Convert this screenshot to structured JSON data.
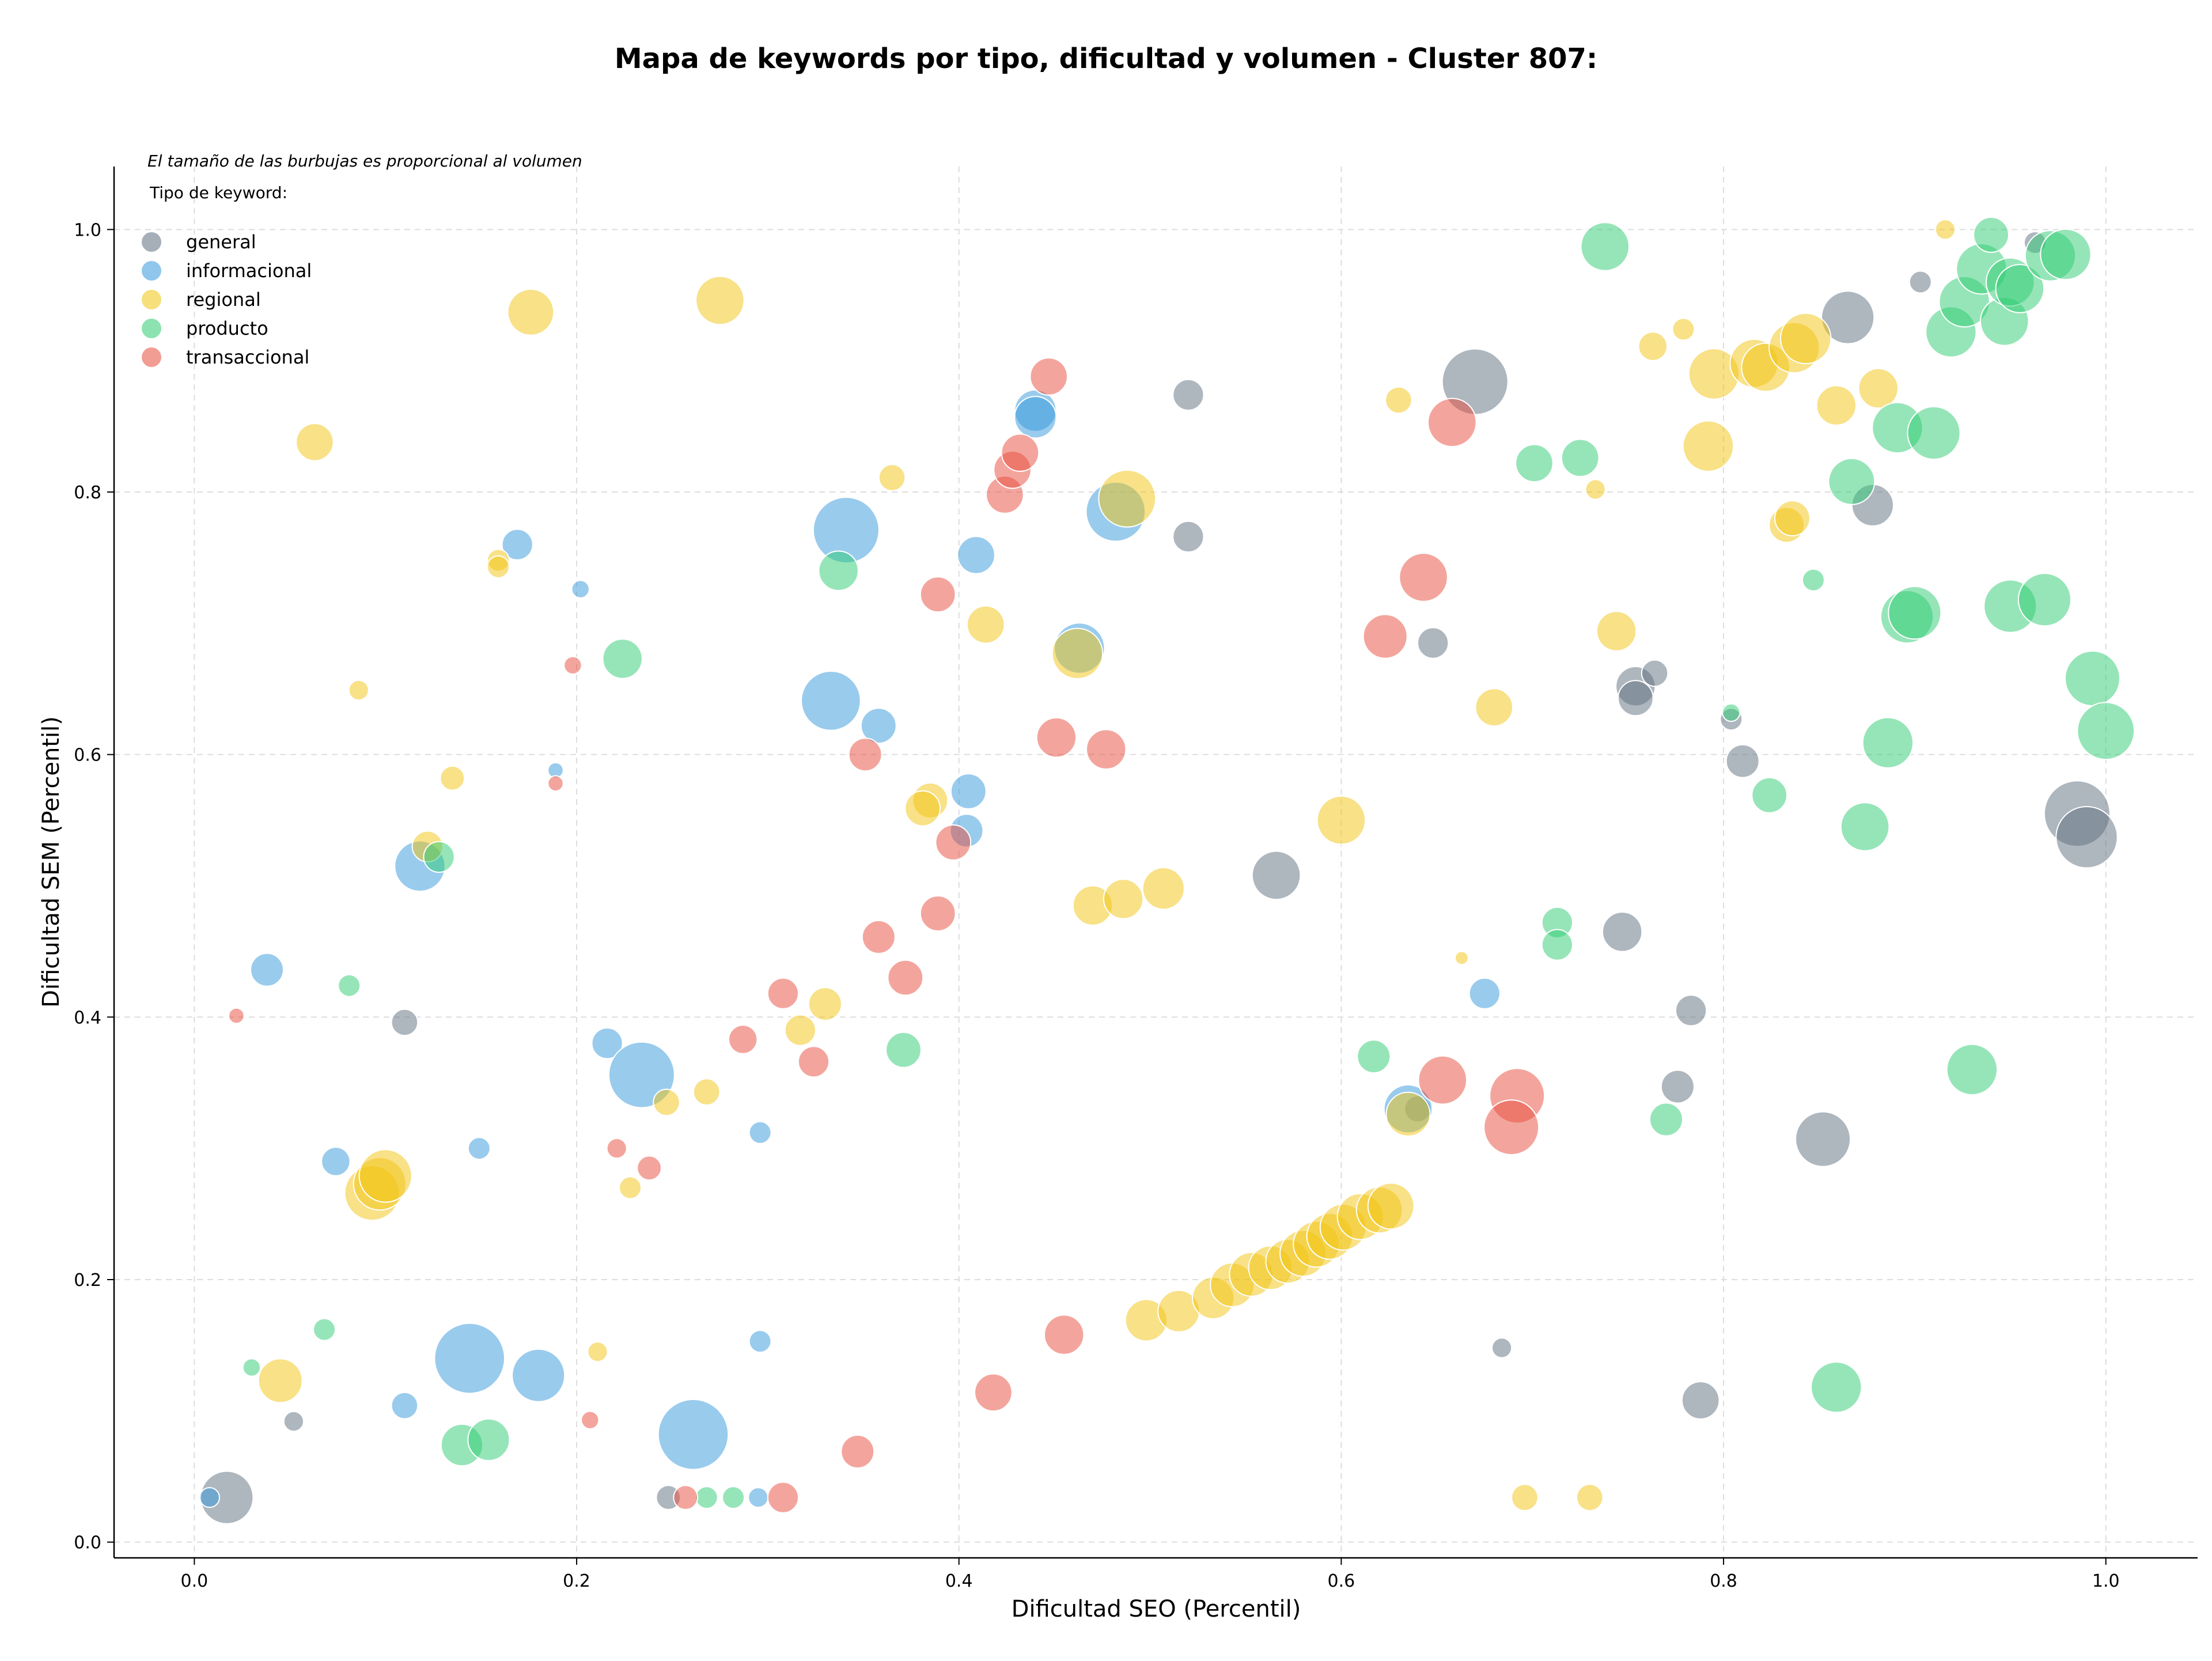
{
  "chart_data": {
    "type": "scatter",
    "title": "Mapa de keywords por tipo, dificultad y volumen - Cluster 807:",
    "subtitle": "El tamaño de las burbujas es proporcional al volumen",
    "xlabel": "Dificultad SEO (Percentil)",
    "ylabel": "Dificultad SEM (Percentil)",
    "xlim": [
      -0.042,
      1.048
    ],
    "ylim": [
      -0.012,
      1.048
    ],
    "xticks": [
      "0.0",
      "0.2",
      "0.4",
      "0.6",
      "0.8",
      "1.0"
    ],
    "xtick_values": [
      0.0,
      0.2,
      0.4,
      0.6,
      0.8,
      1.0
    ],
    "yticks": [
      "0.0",
      "0.2",
      "0.4",
      "0.6",
      "0.8",
      "1.0"
    ],
    "ytick_values": [
      0.0,
      0.2,
      0.4,
      0.6,
      0.8,
      1.0
    ],
    "grid": true,
    "legend_title": "Tipo de keyword:",
    "legend_position": "top-left",
    "series": [
      {
        "name": "general",
        "color": "#5d6d7e",
        "points": [
          [
            0.017,
            0.034,
            2.4
          ],
          [
            0.11,
            0.396,
            1.2
          ],
          [
            0.052,
            0.092,
            0.9
          ],
          [
            0.248,
            0.034,
            1.1
          ],
          [
            0.52,
            0.874,
            1.4
          ],
          [
            0.52,
            0.766,
            1.4
          ],
          [
            0.67,
            0.884,
            3.0
          ],
          [
            0.648,
            0.685,
            1.4
          ],
          [
            0.754,
            0.652,
            1.8
          ],
          [
            0.754,
            0.643,
            1.6
          ],
          [
            0.764,
            0.662,
            1.2
          ],
          [
            0.804,
            0.627,
            1.0
          ],
          [
            0.81,
            0.595,
            1.5
          ],
          [
            0.747,
            0.465,
            1.8
          ],
          [
            0.783,
            0.405,
            1.4
          ],
          [
            0.776,
            0.347,
            1.5
          ],
          [
            0.852,
            0.307,
            2.5
          ],
          [
            0.684,
            0.148,
            0.9
          ],
          [
            0.788,
            0.108,
            1.7
          ],
          [
            0.566,
            0.508,
            2.2
          ],
          [
            0.865,
            0.933,
            2.4
          ],
          [
            0.878,
            0.79,
            1.9
          ],
          [
            0.903,
            0.96,
            1.0
          ],
          [
            0.963,
            0.99,
            1.0
          ],
          [
            0.985,
            0.555,
            3.0
          ],
          [
            0.99,
            0.537,
            2.8
          ],
          [
            0.64,
            0.33,
            1.2
          ]
        ]
      },
      {
        "name": "informacional",
        "color": "#3498db",
        "points": [
          [
            0.008,
            0.034,
            0.9
          ],
          [
            0.038,
            0.436,
            1.5
          ],
          [
            0.074,
            0.29,
            1.3
          ],
          [
            0.11,
            0.104,
            1.2
          ],
          [
            0.118,
            0.515,
            2.3
          ],
          [
            0.149,
            0.3,
            1.0
          ],
          [
            0.144,
            0.14,
            3.2
          ],
          [
            0.18,
            0.127,
            2.4
          ],
          [
            0.169,
            0.76,
            1.4
          ],
          [
            0.189,
            0.588,
            0.7
          ],
          [
            0.202,
            0.726,
            0.8
          ],
          [
            0.216,
            0.38,
            1.4
          ],
          [
            0.234,
            0.356,
            3.0
          ],
          [
            0.261,
            0.082,
            3.2
          ],
          [
            0.296,
            0.312,
            1.0
          ],
          [
            0.296,
            0.153,
            1.0
          ],
          [
            0.295,
            0.034,
            0.9
          ],
          [
            0.341,
            0.771,
            3.0
          ],
          [
            0.333,
            0.641,
            2.7
          ],
          [
            0.358,
            0.622,
            1.6
          ],
          [
            0.405,
            0.572,
            1.6
          ],
          [
            0.404,
            0.542,
            1.5
          ],
          [
            0.409,
            0.752,
            1.7
          ],
          [
            0.44,
            0.862,
            1.9
          ],
          [
            0.44,
            0.857,
            1.9
          ],
          [
            0.463,
            0.681,
            2.3
          ],
          [
            0.482,
            0.785,
            2.7
          ],
          [
            0.675,
            0.418,
            1.4
          ],
          [
            0.635,
            0.33,
            2.2
          ]
        ]
      },
      {
        "name": "regional",
        "color": "#f1c40f",
        "points": [
          [
            0.063,
            0.838,
            1.7
          ],
          [
            0.086,
            0.649,
            0.9
          ],
          [
            0.176,
            0.937,
            2.1
          ],
          [
            0.275,
            0.946,
            2.2
          ],
          [
            0.135,
            0.582,
            1.1
          ],
          [
            0.159,
            0.748,
            1.0
          ],
          [
            0.159,
            0.743,
            1.0
          ],
          [
            0.122,
            0.53,
            1.4
          ],
          [
            0.093,
            0.266,
            2.5
          ],
          [
            0.097,
            0.273,
            2.4
          ],
          [
            0.1,
            0.279,
            2.4
          ],
          [
            0.045,
            0.123,
            2.0
          ],
          [
            0.211,
            0.145,
            0.9
          ],
          [
            0.228,
            0.27,
            1.0
          ],
          [
            0.247,
            0.335,
            1.2
          ],
          [
            0.268,
            0.343,
            1.2
          ],
          [
            0.317,
            0.39,
            1.4
          ],
          [
            0.33,
            0.41,
            1.5
          ],
          [
            0.365,
            0.811,
            1.2
          ],
          [
            0.385,
            0.565,
            1.6
          ],
          [
            0.381,
            0.559,
            1.6
          ],
          [
            0.414,
            0.699,
            1.7
          ],
          [
            0.462,
            0.677,
            2.3
          ],
          [
            0.488,
            0.795,
            2.6
          ],
          [
            0.47,
            0.485,
            1.8
          ],
          [
            0.486,
            0.49,
            1.8
          ],
          [
            0.507,
            0.498,
            1.9
          ],
          [
            0.6,
            0.55,
            2.2
          ],
          [
            0.63,
            0.87,
            1.2
          ],
          [
            0.68,
            0.636,
            1.7
          ],
          [
            0.663,
            0.445,
            0.6
          ],
          [
            0.635,
            0.326,
            2.0
          ],
          [
            0.498,
            0.169,
            1.9
          ],
          [
            0.515,
            0.176,
            1.9
          ],
          [
            0.533,
            0.186,
            1.9
          ],
          [
            0.543,
            0.196,
            2.0
          ],
          [
            0.553,
            0.204,
            2.0
          ],
          [
            0.563,
            0.209,
            2.0
          ],
          [
            0.572,
            0.214,
            2.0
          ],
          [
            0.58,
            0.22,
            2.1
          ],
          [
            0.587,
            0.227,
            2.1
          ],
          [
            0.594,
            0.233,
            2.1
          ],
          [
            0.601,
            0.24,
            2.1
          ],
          [
            0.61,
            0.248,
            2.1
          ],
          [
            0.62,
            0.253,
            2.1
          ],
          [
            0.626,
            0.256,
            2.1
          ],
          [
            0.696,
            0.034,
            1.2
          ],
          [
            0.73,
            0.034,
            1.2
          ],
          [
            0.733,
            0.802,
            0.9
          ],
          [
            0.744,
            0.694,
            1.8
          ],
          [
            0.763,
            0.911,
            1.3
          ],
          [
            0.779,
            0.924,
            1.0
          ],
          [
            0.792,
            0.835,
            2.3
          ],
          [
            0.795,
            0.89,
            2.3
          ],
          [
            0.816,
            0.898,
            2.2
          ],
          [
            0.822,
            0.895,
            2.2
          ],
          [
            0.833,
            0.775,
            1.6
          ],
          [
            0.836,
            0.78,
            1.6
          ],
          [
            0.837,
            0.91,
            2.3
          ],
          [
            0.843,
            0.917,
            2.3
          ],
          [
            0.859,
            0.866,
            1.8
          ],
          [
            0.881,
            0.879,
            1.8
          ],
          [
            0.916,
            1.0,
            0.9
          ]
        ]
      },
      {
        "name": "producto",
        "color": "#2ecc71",
        "points": [
          [
            0.03,
            0.133,
            0.8
          ],
          [
            0.068,
            0.162,
            1.0
          ],
          [
            0.081,
            0.424,
            1.0
          ],
          [
            0.128,
            0.522,
            1.4
          ],
          [
            0.14,
            0.074,
            1.9
          ],
          [
            0.154,
            0.078,
            1.9
          ],
          [
            0.224,
            0.673,
            1.8
          ],
          [
            0.268,
            0.034,
            1.0
          ],
          [
            0.282,
            0.034,
            1.0
          ],
          [
            0.337,
            0.74,
            1.8
          ],
          [
            0.371,
            0.375,
            1.6
          ],
          [
            0.617,
            0.37,
            1.5
          ],
          [
            0.701,
            0.822,
            1.7
          ],
          [
            0.725,
            0.826,
            1.7
          ],
          [
            0.738,
            0.987,
            2.2
          ],
          [
            0.713,
            0.472,
            1.4
          ],
          [
            0.713,
            0.455,
            1.4
          ],
          [
            0.77,
            0.322,
            1.5
          ],
          [
            0.804,
            0.632,
            0.8
          ],
          [
            0.824,
            0.569,
            1.6
          ],
          [
            0.847,
            0.733,
            1.0
          ],
          [
            0.859,
            0.118,
            2.3
          ],
          [
            0.867,
            0.808,
            2.1
          ],
          [
            0.874,
            0.545,
            2.2
          ],
          [
            0.886,
            0.609,
            2.3
          ],
          [
            0.891,
            0.849,
            2.3
          ],
          [
            0.896,
            0.705,
            2.4
          ],
          [
            0.9,
            0.708,
            2.4
          ],
          [
            0.91,
            0.845,
            2.4
          ],
          [
            0.919,
            0.922,
            2.3
          ],
          [
            0.926,
            0.945,
            2.3
          ],
          [
            0.93,
            0.36,
            2.3
          ],
          [
            0.935,
            0.97,
            2.3
          ],
          [
            0.94,
            0.996,
            1.6
          ],
          [
            0.947,
            0.93,
            2.2
          ],
          [
            0.95,
            0.713,
            2.4
          ],
          [
            0.95,
            0.96,
            2.2
          ],
          [
            0.955,
            0.955,
            2.2
          ],
          [
            0.968,
            0.718,
            2.4
          ],
          [
            0.971,
            0.98,
            2.3
          ],
          [
            0.979,
            0.981,
            2.3
          ],
          [
            0.993,
            0.658,
            2.5
          ],
          [
            1.0,
            0.618,
            2.6
          ]
        ]
      },
      {
        "name": "transaccional",
        "color": "#e74c3c",
        "points": [
          [
            0.022,
            0.401,
            0.7
          ],
          [
            0.189,
            0.578,
            0.7
          ],
          [
            0.198,
            0.668,
            0.8
          ],
          [
            0.207,
            0.093,
            0.8
          ],
          [
            0.221,
            0.3,
            0.9
          ],
          [
            0.238,
            0.285,
            1.1
          ],
          [
            0.257,
            0.034,
            1.1
          ],
          [
            0.287,
            0.383,
            1.3
          ],
          [
            0.308,
            0.418,
            1.4
          ],
          [
            0.308,
            0.034,
            1.4
          ],
          [
            0.324,
            0.366,
            1.4
          ],
          [
            0.347,
            0.069,
            1.5
          ],
          [
            0.351,
            0.6,
            1.5
          ],
          [
            0.358,
            0.461,
            1.5
          ],
          [
            0.372,
            0.43,
            1.6
          ],
          [
            0.389,
            0.722,
            1.6
          ],
          [
            0.389,
            0.479,
            1.6
          ],
          [
            0.397,
            0.533,
            1.6
          ],
          [
            0.418,
            0.114,
            1.7
          ],
          [
            0.424,
            0.798,
            1.7
          ],
          [
            0.428,
            0.817,
            1.7
          ],
          [
            0.432,
            0.83,
            1.7
          ],
          [
            0.447,
            0.888,
            1.7
          ],
          [
            0.451,
            0.613,
            1.8
          ],
          [
            0.455,
            0.158,
            1.8
          ],
          [
            0.477,
            0.604,
            1.8
          ],
          [
            0.623,
            0.69,
            2.0
          ],
          [
            0.643,
            0.735,
            2.2
          ],
          [
            0.658,
            0.853,
            2.2
          ],
          [
            0.653,
            0.352,
            2.2
          ],
          [
            0.692,
            0.34,
            2.5
          ],
          [
            0.689,
            0.316,
            2.5
          ]
        ]
      }
    ]
  }
}
